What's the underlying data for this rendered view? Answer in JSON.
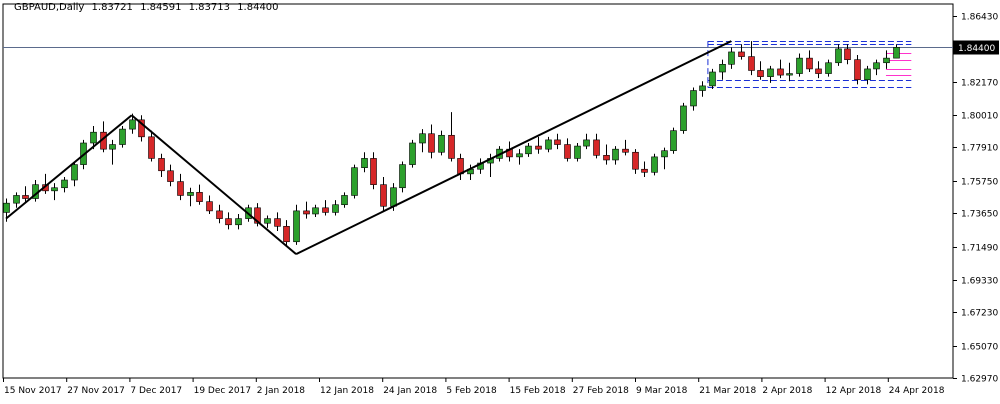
{
  "chart_data": {
    "type": "candlestick",
    "symbol": "GBPAUD",
    "timeframe": "Daily",
    "header": {
      "label": "GBPAUD,Daily",
      "open": "1.83721",
      "high": "1.84591",
      "low": "1.83713",
      "close": "1.84400"
    },
    "current_price_label": "1.84400",
    "current_price": 1.844,
    "y_ticks": [
      "1.86430",
      "1.84400",
      "1.82170",
      "1.80010",
      "1.77910",
      "1.75750",
      "1.73650",
      "1.71490",
      "1.69330",
      "1.67230",
      "1.65070",
      "1.62970"
    ],
    "y_range": [
      1.6297,
      1.8643
    ],
    "x_tick_labels": [
      "15 Nov 2017",
      "27 Nov 2017",
      "7 Dec 2017",
      "19 Dec 2017",
      "2 Jan 2018",
      "12 Jan 2018",
      "24 Jan 2018",
      "5 Feb 2018",
      "15 Feb 2018",
      "27 Feb 2018",
      "9 Mar 2018",
      "21 Mar 2018",
      "2 Apr 2018",
      "12 Apr 2018",
      "24 Apr 2018"
    ],
    "candles_ohlc": [
      [
        1.737,
        1.746,
        1.731,
        1.743
      ],
      [
        1.743,
        1.75,
        1.74,
        1.748
      ],
      [
        1.748,
        1.754,
        1.744,
        1.746
      ],
      [
        1.746,
        1.758,
        1.744,
        1.755
      ],
      [
        1.755,
        1.762,
        1.749,
        1.751
      ],
      [
        1.751,
        1.756,
        1.745,
        1.753
      ],
      [
        1.753,
        1.76,
        1.75,
        1.758
      ],
      [
        1.758,
        1.77,
        1.754,
        1.768
      ],
      [
        1.768,
        1.784,
        1.765,
        1.782
      ],
      [
        1.782,
        1.793,
        1.778,
        1.789
      ],
      [
        1.789,
        1.796,
        1.776,
        1.778
      ],
      [
        1.778,
        1.784,
        1.768,
        1.781
      ],
      [
        1.781,
        1.793,
        1.779,
        1.791
      ],
      [
        1.791,
        1.801,
        1.788,
        1.797
      ],
      [
        1.797,
        1.8,
        1.783,
        1.786
      ],
      [
        1.786,
        1.79,
        1.77,
        1.772
      ],
      [
        1.772,
        1.775,
        1.76,
        1.764
      ],
      [
        1.764,
        1.768,
        1.754,
        1.757
      ],
      [
        1.757,
        1.762,
        1.745,
        1.748
      ],
      [
        1.748,
        1.753,
        1.741,
        1.75
      ],
      [
        1.75,
        1.755,
        1.742,
        1.744
      ],
      [
        1.744,
        1.748,
        1.736,
        1.738
      ],
      [
        1.738,
        1.742,
        1.73,
        1.733
      ],
      [
        1.733,
        1.737,
        1.726,
        1.729
      ],
      [
        1.729,
        1.736,
        1.726,
        1.733
      ],
      [
        1.733,
        1.742,
        1.731,
        1.74
      ],
      [
        1.74,
        1.743,
        1.728,
        1.73
      ],
      [
        1.73,
        1.735,
        1.727,
        1.733
      ],
      [
        1.733,
        1.737,
        1.725,
        1.728
      ],
      [
        1.728,
        1.732,
        1.715,
        1.718
      ],
      [
        1.718,
        1.742,
        1.716,
        1.738
      ],
      [
        1.738,
        1.744,
        1.733,
        1.736
      ],
      [
        1.736,
        1.742,
        1.734,
        1.74
      ],
      [
        1.74,
        1.745,
        1.735,
        1.737
      ],
      [
        1.737,
        1.745,
        1.735,
        1.742
      ],
      [
        1.742,
        1.75,
        1.74,
        1.748
      ],
      [
        1.748,
        1.768,
        1.746,
        1.766
      ],
      [
        1.766,
        1.776,
        1.763,
        1.772
      ],
      [
        1.772,
        1.776,
        1.752,
        1.755
      ],
      [
        1.755,
        1.76,
        1.738,
        1.741
      ],
      [
        1.741,
        1.756,
        1.738,
        1.753
      ],
      [
        1.753,
        1.77,
        1.75,
        1.768
      ],
      [
        1.768,
        1.784,
        1.766,
        1.782
      ],
      [
        1.782,
        1.791,
        1.776,
        1.788
      ],
      [
        1.788,
        1.794,
        1.772,
        1.776
      ],
      [
        1.776,
        1.79,
        1.774,
        1.787
      ],
      [
        1.787,
        1.802,
        1.77,
        1.772
      ],
      [
        1.772,
        1.775,
        1.758,
        1.762
      ],
      [
        1.762,
        1.768,
        1.758,
        1.765
      ],
      [
        1.765,
        1.772,
        1.762,
        1.769
      ],
      [
        1.769,
        1.775,
        1.76,
        1.772
      ],
      [
        1.772,
        1.78,
        1.77,
        1.778
      ],
      [
        1.778,
        1.783,
        1.77,
        1.773
      ],
      [
        1.773,
        1.778,
        1.768,
        1.775
      ],
      [
        1.775,
        1.782,
        1.773,
        1.78
      ],
      [
        1.78,
        1.786,
        1.775,
        1.778
      ],
      [
        1.778,
        1.786,
        1.776,
        1.784
      ],
      [
        1.784,
        1.788,
        1.778,
        1.781
      ],
      [
        1.781,
        1.785,
        1.77,
        1.772
      ],
      [
        1.772,
        1.782,
        1.77,
        1.78
      ],
      [
        1.78,
        1.788,
        1.778,
        1.784
      ],
      [
        1.784,
        1.788,
        1.772,
        1.774
      ],
      [
        1.774,
        1.781,
        1.768,
        1.771
      ],
      [
        1.771,
        1.78,
        1.768,
        1.778
      ],
      [
        1.778,
        1.784,
        1.774,
        1.776
      ],
      [
        1.776,
        1.778,
        1.762,
        1.765
      ],
      [
        1.765,
        1.77,
        1.76,
        1.763
      ],
      [
        1.763,
        1.775,
        1.761,
        1.773
      ],
      [
        1.773,
        1.779,
        1.765,
        1.777
      ],
      [
        1.777,
        1.792,
        1.775,
        1.79
      ],
      [
        1.79,
        1.808,
        1.788,
        1.806
      ],
      [
        1.806,
        1.818,
        1.803,
        1.816
      ],
      [
        1.816,
        1.822,
        1.812,
        1.819
      ],
      [
        1.819,
        1.83,
        1.817,
        1.828
      ],
      [
        1.828,
        1.836,
        1.823,
        1.833
      ],
      [
        1.833,
        1.844,
        1.83,
        1.841
      ],
      [
        1.841,
        1.846,
        1.836,
        1.838
      ],
      [
        1.838,
        1.848,
        1.826,
        1.829
      ],
      [
        1.829,
        1.835,
        1.823,
        1.825
      ],
      [
        1.825,
        1.832,
        1.821,
        1.83
      ],
      [
        1.83,
        1.836,
        1.824,
        1.826
      ],
      [
        1.826,
        1.834,
        1.822,
        1.827
      ],
      [
        1.827,
        1.84,
        1.825,
        1.837
      ],
      [
        1.837,
        1.842,
        1.828,
        1.83
      ],
      [
        1.83,
        1.835,
        1.824,
        1.827
      ],
      [
        1.827,
        1.836,
        1.825,
        1.834
      ],
      [
        1.834,
        1.846,
        1.832,
        1.843
      ],
      [
        1.843,
        1.846,
        1.833,
        1.836
      ],
      [
        1.836,
        1.839,
        1.82,
        1.823
      ],
      [
        1.823,
        1.832,
        1.82,
        1.83
      ],
      [
        1.83,
        1.836,
        1.826,
        1.834
      ],
      [
        1.834,
        1.842,
        1.83,
        1.837
      ],
      [
        1.837,
        1.846,
        1.837,
        1.844
      ]
    ],
    "trendlines": [
      {
        "points": [
          [
            0,
            1.733
          ],
          [
            13,
            1.8
          ]
        ]
      },
      {
        "points": [
          [
            13,
            1.8
          ],
          [
            30,
            1.71
          ]
        ]
      },
      {
        "points": [
          [
            30,
            1.71
          ],
          [
            75,
            1.848
          ]
        ]
      }
    ],
    "range_box": {
      "start": 73,
      "end": 93,
      "top": 1.848,
      "upper": 1.846,
      "lower": 1.823,
      "bottom": 1.818
    },
    "pink_levels": [
      1.84,
      1.836,
      1.83,
      1.826
    ],
    "colors": {
      "bull": "#2ca02c",
      "bear": "#d62728",
      "wick": "#000000",
      "grid": "#c0c0c0",
      "trendline": "#000000",
      "range": "#1a2fd6",
      "pink": "#ff33cc",
      "price_line": "#5b6b8c"
    }
  }
}
